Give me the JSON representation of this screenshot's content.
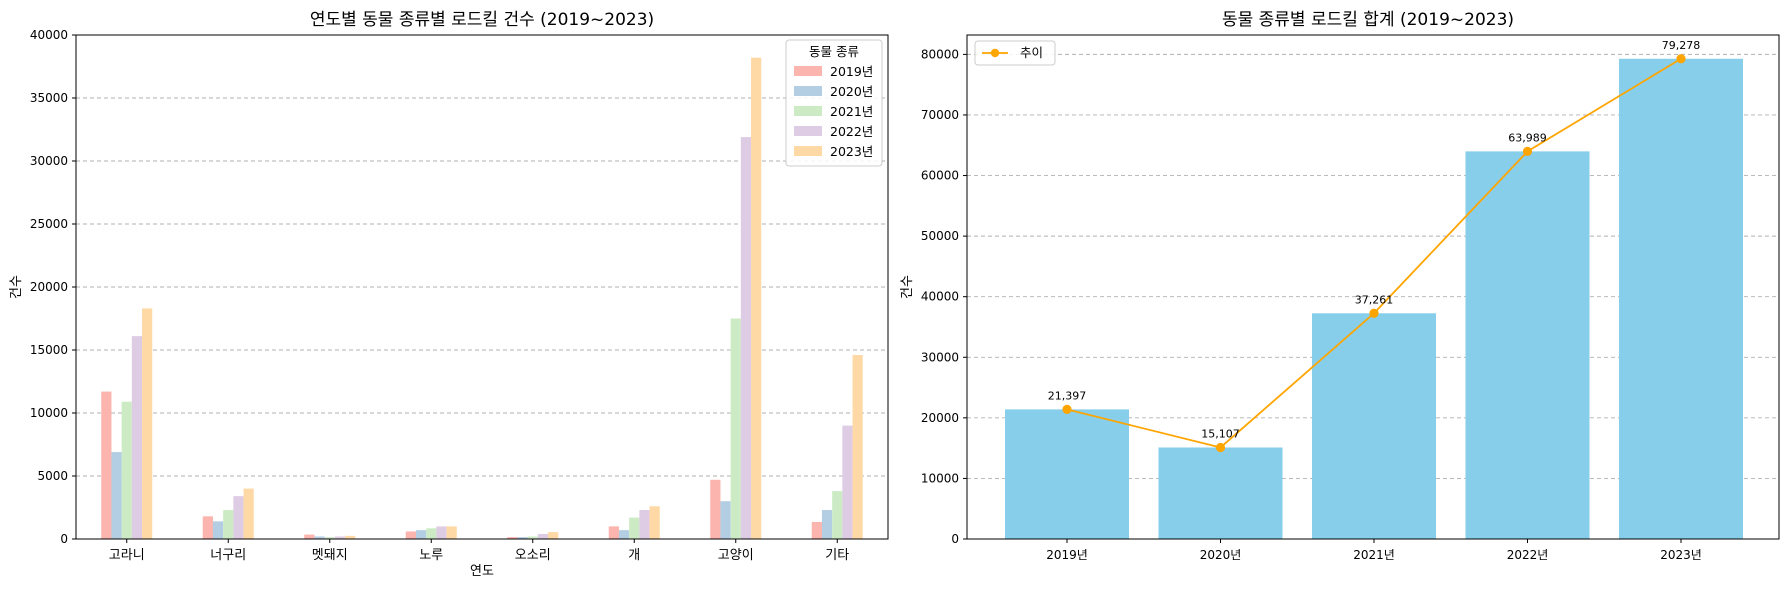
{
  "chart_data": [
    {
      "type": "bar",
      "title": "연도별 동물 종류별 로드킬 건수 (2019~2023)",
      "xlabel": "연도",
      "ylabel": "건수",
      "categories": [
        "고라니",
        "너구리",
        "멧돼지",
        "노루",
        "오소리",
        "개",
        "고양이",
        "기타"
      ],
      "ylim": [
        0,
        40000
      ],
      "yticks": [
        "0",
        "5000",
        "10000",
        "15000",
        "20000",
        "25000",
        "30000",
        "35000",
        "40000"
      ],
      "grid": "y-dashed",
      "legend": {
        "title": "동물 종류",
        "placement": "top-right"
      },
      "series": [
        {
          "name": "2019년",
          "color": "#fbb4ae",
          "values": [
            11700,
            1800,
            350,
            600,
            150,
            1000,
            4700,
            1350
          ]
        },
        {
          "name": "2020년",
          "color": "#b3cde3",
          "values": [
            6900,
            1400,
            200,
            700,
            150,
            700,
            3000,
            2300
          ]
        },
        {
          "name": "2021년",
          "color": "#ccebc5",
          "values": [
            10900,
            2300,
            150,
            850,
            200,
            1700,
            17500,
            3800
          ]
        },
        {
          "name": "2022년",
          "color": "#decbe4",
          "values": [
            16100,
            3400,
            200,
            1000,
            400,
            2300,
            31900,
            9000
          ]
        },
        {
          "name": "2023년",
          "color": "#fed9a6",
          "values": [
            18300,
            4000,
            250,
            1000,
            550,
            2600,
            38200,
            14600
          ]
        }
      ]
    },
    {
      "type": "bar",
      "title": "동물 종류별 로드킬 합계 (2019~2023)",
      "xlabel": "",
      "ylabel": "건수",
      "categories": [
        "2019년",
        "2020년",
        "2021년",
        "2022년",
        "2023년"
      ],
      "values": [
        21397,
        15107,
        37261,
        63989,
        79278
      ],
      "value_labels": [
        "21,397",
        "15,107",
        "37,261",
        "63,989",
        "79,278"
      ],
      "ylim": [
        0,
        83200
      ],
      "yticks": [
        "0",
        "10000",
        "20000",
        "30000",
        "40000",
        "50000",
        "60000",
        "70000",
        "80000"
      ],
      "grid": "y-dashed",
      "bar_color": "#87ceeb",
      "line_series": {
        "name": "추이",
        "color": "#ffa500",
        "values": [
          21397,
          15107,
          37261,
          63989,
          79278
        ]
      },
      "legend": {
        "placement": "top-left"
      }
    }
  ]
}
